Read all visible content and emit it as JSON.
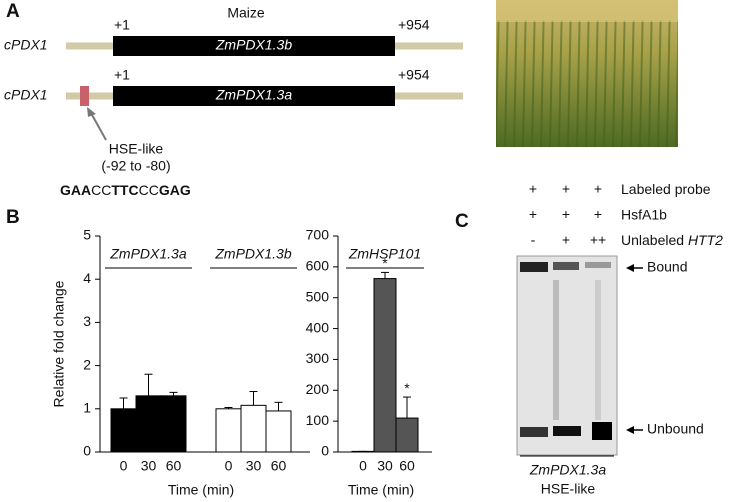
{
  "panel_a": {
    "label": "A",
    "title": "Maize",
    "genes": [
      {
        "name": "cPDX1",
        "start": "+1",
        "end": "+954",
        "label": "ZmPDX1.3b"
      },
      {
        "name": "cPDX1",
        "start": "+1",
        "end": "+954",
        "label": "ZmPDX1.3a"
      }
    ],
    "hse_label": "HSE-like",
    "hse_range": "(-92 to -80)",
    "sequence": [
      {
        "text": "GAA",
        "bold": true
      },
      {
        "text": "CC",
        "bold": false
      },
      {
        "text": "TTC",
        "bold": true
      },
      {
        "text": "CC",
        "bold": false
      },
      {
        "text": "GAG",
        "bold": true
      }
    ]
  },
  "panel_b_label": "B",
  "chart_data": [
    {
      "type": "bar",
      "ylabel": "Relative fold change",
      "xlabel": "Time (min)",
      "categories": [
        "0",
        "30",
        "60"
      ],
      "ylim": [
        0,
        5
      ],
      "yticks": [
        0,
        1,
        2,
        3,
        4,
        5
      ],
      "series": [
        {
          "name": "ZmPDX1.3a",
          "color": "#000000",
          "values": [
            1.0,
            1.3,
            1.3
          ],
          "errors": [
            0.25,
            0.5,
            0.08
          ]
        },
        {
          "name": "ZmPDX1.3b",
          "color": "#ffffff",
          "values": [
            1.0,
            1.08,
            0.95
          ],
          "errors": [
            0.03,
            0.32,
            0.2
          ]
        }
      ]
    },
    {
      "type": "bar",
      "xlabel": "Time (min)",
      "categories": [
        "0",
        "30",
        "60"
      ],
      "ylim": [
        0,
        700
      ],
      "yticks": [
        0,
        100,
        200,
        300,
        400,
        500,
        600,
        700
      ],
      "series": [
        {
          "name": "ZmHSP101",
          "color": "#555555",
          "values": [
            2,
            562,
            110
          ],
          "errors": [
            0,
            20,
            68
          ],
          "annotations": [
            null,
            "*",
            "*"
          ]
        }
      ]
    }
  ],
  "panel_c": {
    "label": "C",
    "rows": [
      {
        "marks": [
          "+",
          "+",
          "+"
        ],
        "label": "Labeled probe",
        "label_italic": null
      },
      {
        "marks": [
          "+",
          "+",
          "+"
        ],
        "label": "HsfA1b",
        "label_italic": null
      },
      {
        "marks": [
          "-",
          "+",
          "++"
        ],
        "label": "Unlabeled",
        "label_italic": "HTT2"
      }
    ],
    "bands": [
      "Bound",
      "Unbound"
    ],
    "probe": "ZmPDX1.3a",
    "probe_note": "HSE-like"
  }
}
